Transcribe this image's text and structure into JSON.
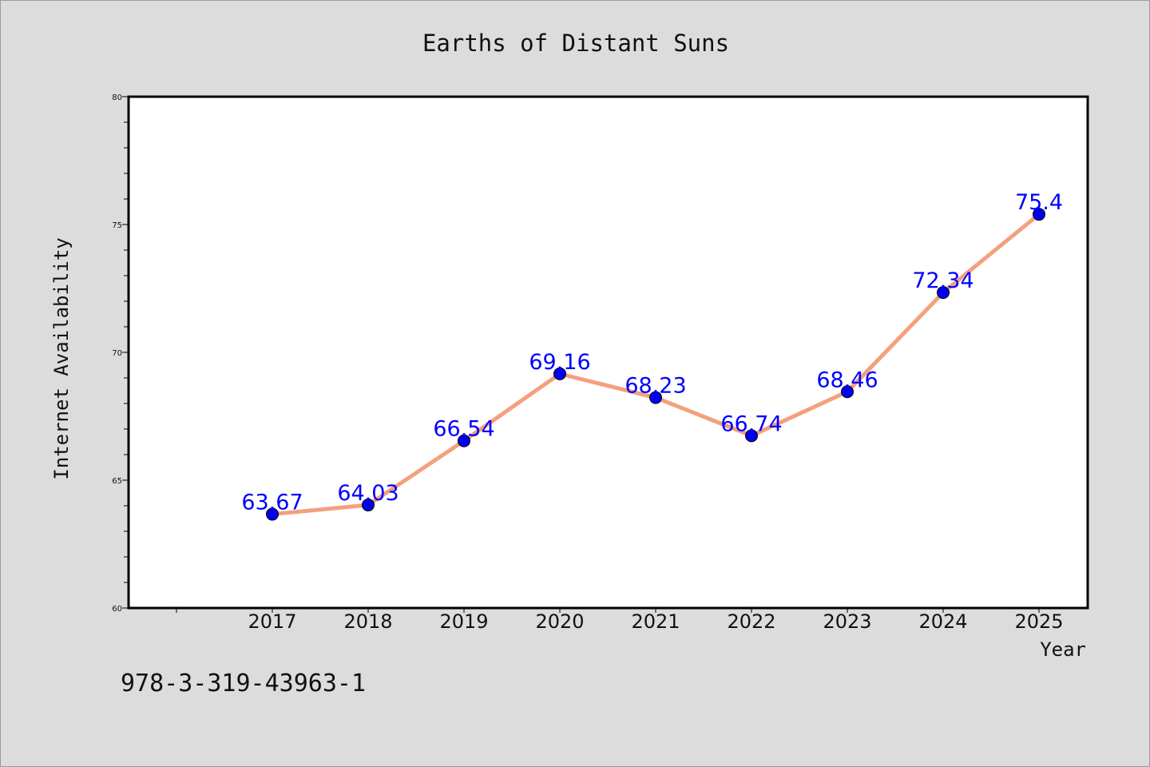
{
  "chart_data": {
    "type": "line",
    "title": "Earths of Distant Suns",
    "xlabel": "Year",
    "ylabel": "Internet Availability",
    "categories": [
      "2017",
      "2018",
      "2019",
      "2020",
      "2021",
      "2022",
      "2023",
      "2024",
      "2025"
    ],
    "series": [
      {
        "values": [
          63.67,
          64.03,
          66.54,
          69.16,
          68.23,
          66.74,
          68.46,
          72.34,
          75.4
        ],
        "labels": [
          "63.67",
          "64.03",
          "66.54",
          "69.16",
          "68.23",
          "66.74",
          "68.46",
          "72.34",
          "75.4"
        ],
        "line_color": "#f4a07e",
        "marker_color": "#0000ee",
        "label_color": "#0000ff"
      }
    ],
    "ylim": [
      60,
      80
    ],
    "yticks": [
      "60",
      "65",
      "70",
      "75",
      "80"
    ],
    "grid": false,
    "legend": "none"
  },
  "footer": {
    "isbn": "978-3-319-43963-1"
  },
  "colors": {
    "background": "#dcdcdc",
    "plot_background": "#ffffff",
    "text": "#111111"
  }
}
